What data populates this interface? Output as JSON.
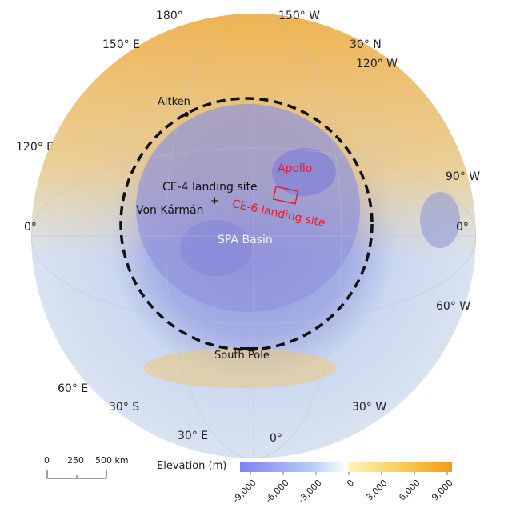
{
  "graticule_labels": {
    "lon_180": "180°",
    "lon_150w": "150° W",
    "lon_150e": "150° E",
    "lat_30n": "30° N",
    "lon_120w": "120° W",
    "lon_120e": "120° E",
    "lon_90w": "90° W",
    "left_0": "0°",
    "right_0": "0°",
    "lon_60w": "60° W",
    "lon_60e": "60° E",
    "lat_30s": "30° S",
    "lon_30w": "30° W",
    "lon_30e": "30° E",
    "bottom_0": "0°"
  },
  "features": {
    "aitken": "Aitken",
    "apollo": "Apollo",
    "ce4": "CE-4 landing site",
    "von_karman": "Von Kármán",
    "ce6": "CE-6 landing site",
    "spa_basin": "SPA Basin",
    "south_pole": "South Pole",
    "ce4_marker": "+"
  },
  "scale_bar": {
    "ticks": [
      "0",
      "250",
      "500 km"
    ]
  },
  "legend": {
    "title": "Elevation (m)",
    "ticks": [
      "-9,000",
      "-6,000",
      "-3,000",
      "0",
      "3,000",
      "6,000",
      "9,000"
    ],
    "colors": {
      "low": "#8080f0",
      "mid_low": "#cfe4fa",
      "zero": "#ffffff",
      "mid_high": "#fbe48a",
      "high": "#f59a10"
    }
  },
  "colors": {
    "highlight": "#e8192c",
    "basin_rim": "#111111"
  }
}
